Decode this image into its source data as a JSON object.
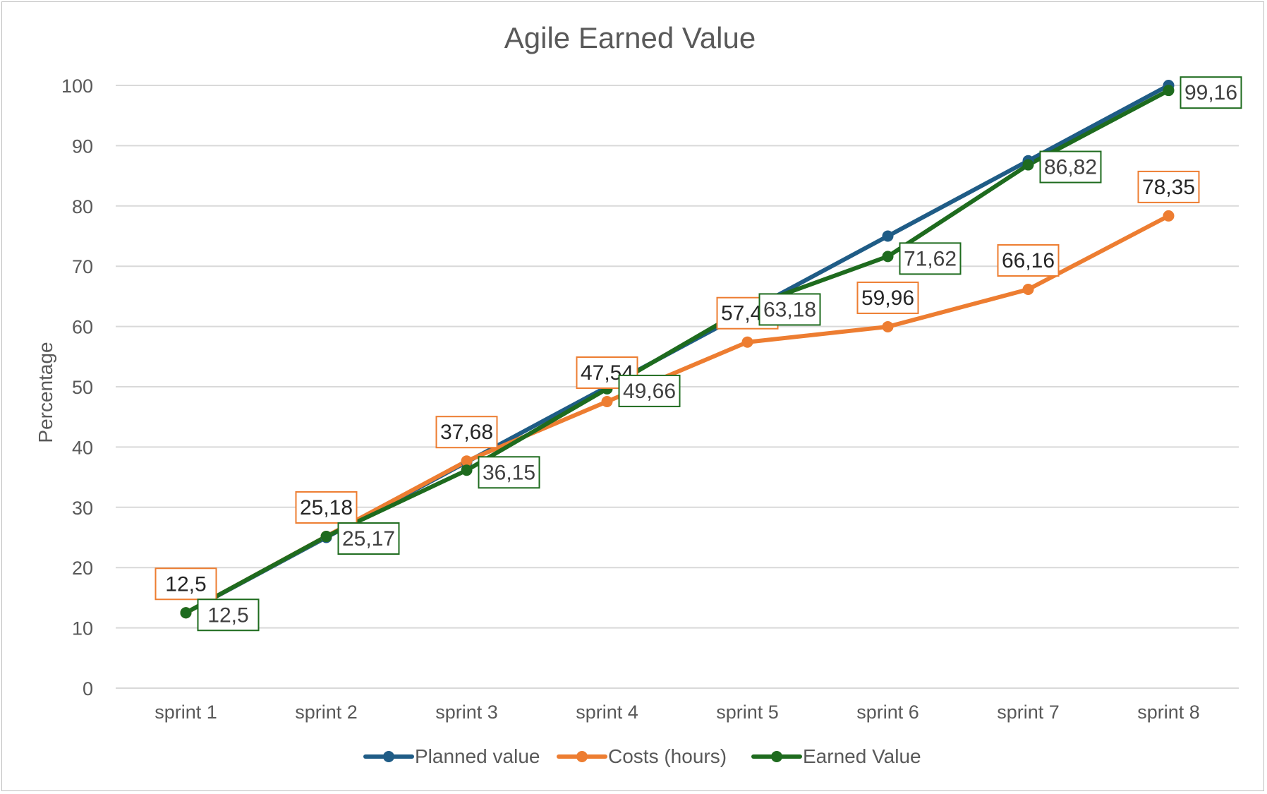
{
  "chart_data": {
    "type": "line",
    "title": "Agile Earned Value",
    "ylabel": "Percentage",
    "xlabel": "",
    "categories": [
      "sprint 1",
      "sprint 2",
      "sprint 3",
      "sprint 4",
      "sprint 5",
      "sprint 6",
      "sprint 7",
      "sprint 8"
    ],
    "ylim": [
      0,
      100
    ],
    "yticks": [
      0,
      10,
      20,
      30,
      40,
      50,
      60,
      70,
      80,
      90,
      100
    ],
    "grid": true,
    "legend_position": "bottom",
    "series": [
      {
        "name": "Planned value",
        "color": "#1f5c86",
        "values": [
          12.5,
          25,
          37.5,
          50,
          62.5,
          75,
          87.5,
          100
        ],
        "show_labels": false,
        "labels": []
      },
      {
        "name": "Costs (hours)",
        "color": "#ed7d31",
        "values": [
          12.5,
          25.18,
          37.68,
          47.54,
          57.41,
          59.96,
          66.16,
          78.35
        ],
        "show_labels": true,
        "labels": [
          "12,5",
          "25,18",
          "37,68",
          "47,54",
          "57,41",
          "59,96",
          "66,16",
          "78,35"
        ]
      },
      {
        "name": "Earned Value",
        "color": "#1e6b1e",
        "values": [
          12.5,
          25.17,
          36.15,
          49.66,
          63.18,
          71.62,
          86.82,
          99.16
        ],
        "show_labels": true,
        "labels": [
          "12,5",
          "25,17",
          "36,15",
          "49,66",
          "63,18",
          "71,62",
          "86,82",
          "99,16"
        ]
      }
    ]
  }
}
